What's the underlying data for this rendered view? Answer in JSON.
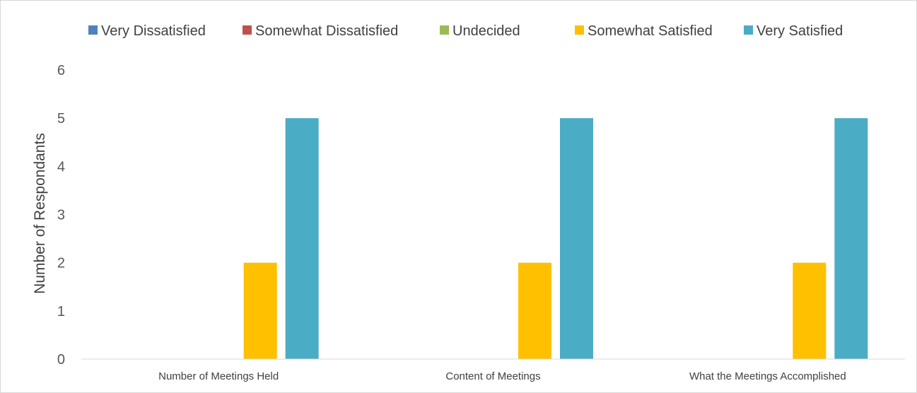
{
  "chart_data": {
    "type": "bar",
    "title": "",
    "xlabel": "",
    "ylabel": "Number of Respondants",
    "ylim": [
      0,
      6
    ],
    "yticks": [
      0,
      1,
      2,
      3,
      4,
      5,
      6
    ],
    "grid": false,
    "legend_position": "top",
    "categories": [
      "Number of Meetings Held",
      "Content of Meetings",
      "What the Meetings Accomplished"
    ],
    "series": [
      {
        "name": "Very Dissatisfied",
        "color": "#4f81bd",
        "values": [
          0,
          0,
          0
        ]
      },
      {
        "name": "Somewhat Dissatisfied",
        "color": "#c0504d",
        "values": [
          0,
          0,
          0
        ]
      },
      {
        "name": "Undecided",
        "color": "#9bbb59",
        "values": [
          0,
          0,
          0
        ]
      },
      {
        "name": "Somewhat Satisfied",
        "color": "#ffc000",
        "values": [
          2,
          2,
          2
        ]
      },
      {
        "name": "Very Satisfied",
        "color": "#4bacc6",
        "values": [
          5,
          5,
          5
        ]
      }
    ]
  }
}
